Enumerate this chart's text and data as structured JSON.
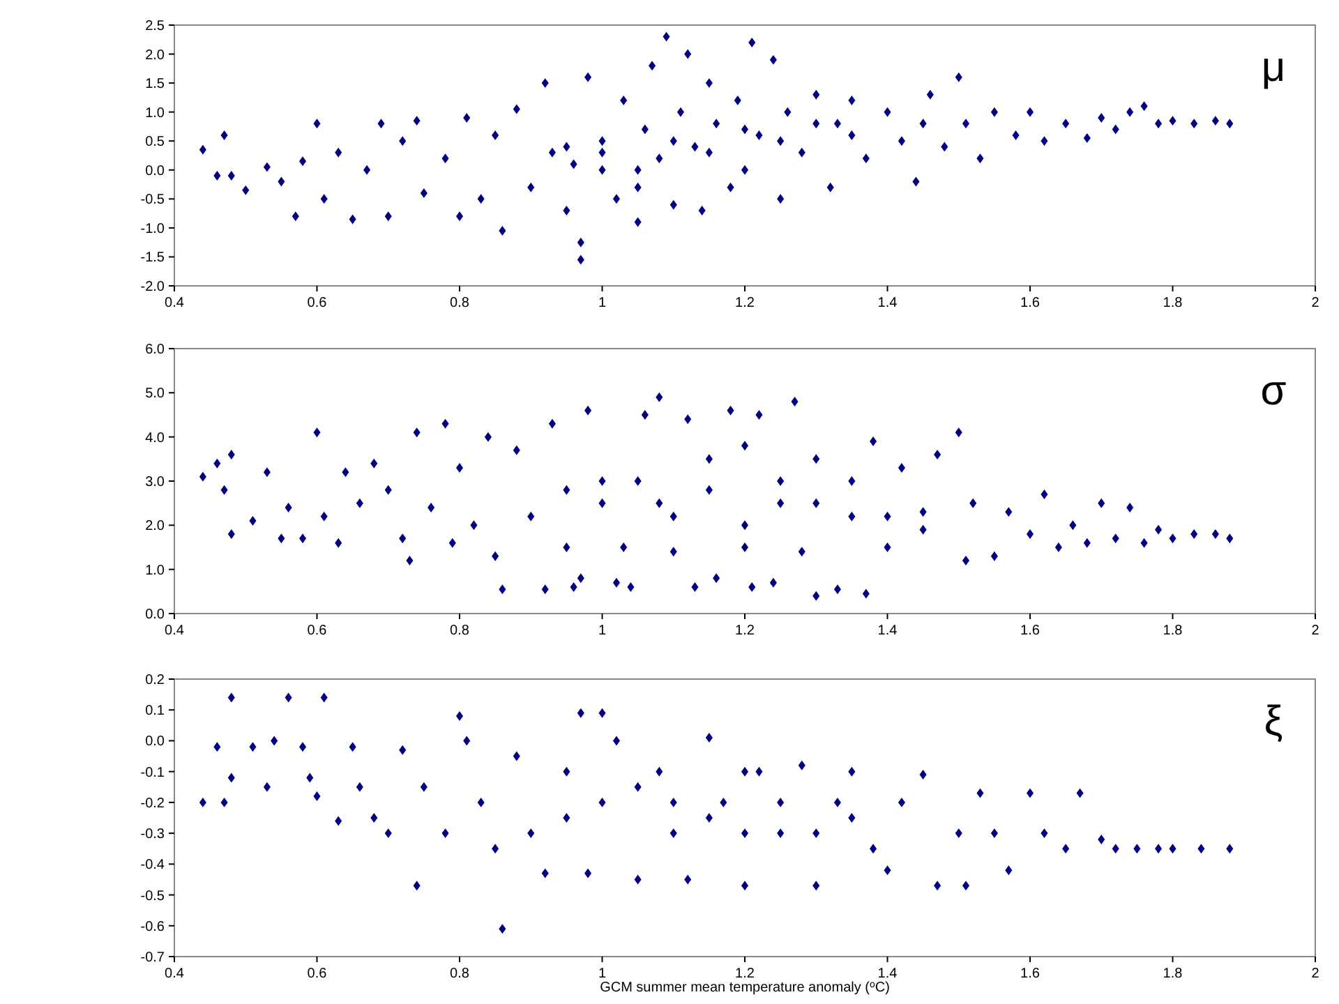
{
  "chart_data": [
    {
      "type": "scatter",
      "annotations": [
        "μ"
      ],
      "marker": "diamond",
      "xlim": [
        0.4,
        2
      ],
      "xticks": [
        0.4,
        0.6,
        0.8,
        1,
        1.2,
        1.4,
        1.6,
        1.8,
        2
      ],
      "ylim": [
        -2,
        2.5
      ],
      "yticks": [
        {
          "value": -2,
          "label": "-2.0"
        },
        -1.5,
        {
          "value": -1,
          "label": "-1.0"
        },
        -0.5,
        {
          "value": 0,
          "label": "0.0"
        },
        0.5,
        {
          "value": 1,
          "label": "1.0"
        },
        1.5,
        {
          "value": 2,
          "label": "2.0"
        },
        2.5
      ],
      "series": [
        {
          "color": "#000080",
          "x": [
            0.44,
            0.47,
            0.46,
            0.48,
            0.5,
            0.53,
            0.55,
            0.57,
            0.58,
            0.6,
            0.61,
            0.63,
            0.65,
            0.67,
            0.69,
            0.7,
            0.72,
            0.74,
            0.75,
            0.78,
            0.8,
            0.81,
            0.83,
            0.85,
            0.86,
            0.88,
            0.9,
            0.92,
            0.93,
            0.95,
            0.96,
            0.97,
            0.97,
            0.98,
            1.0,
            1.0,
            1.02,
            1.03,
            1.05,
            1.06,
            1.07,
            1.08,
            1.09,
            1.1,
            1.11,
            1.12,
            1.13,
            1.14,
            1.15,
            1.16,
            1.18,
            1.19,
            1.21,
            1.22,
            1.24,
            1.25,
            1.26,
            1.28,
            1.3,
            1.32,
            1.33,
            1.35,
            1.37,
            1.4,
            1.42,
            1.44,
            1.46,
            1.48,
            1.5,
            1.51,
            1.53,
            1.55,
            1.58,
            1.6,
            1.62,
            1.65,
            1.68,
            1.7,
            1.72,
            1.74,
            1.76,
            1.78,
            1.8,
            1.83,
            1.86,
            1.88,
            1.0,
            1.05,
            1.1,
            1.15,
            1.2,
            1.25,
            1.3,
            1.05,
            0.95,
            1.35,
            1.45,
            1.2
          ],
          "values": [
            0.35,
            0.6,
            -0.1,
            -0.1,
            -0.35,
            0.05,
            -0.2,
            -0.8,
            0.15,
            0.8,
            -0.5,
            0.3,
            -0.85,
            0.0,
            0.8,
            -0.8,
            0.5,
            0.85,
            -0.4,
            0.2,
            -0.8,
            0.9,
            -0.5,
            0.6,
            -1.05,
            1.05,
            -0.3,
            1.5,
            0.3,
            -0.7,
            0.1,
            -1.55,
            -1.25,
            1.6,
            0.0,
            0.5,
            -0.5,
            1.2,
            -0.9,
            0.7,
            1.8,
            0.2,
            2.3,
            -0.6,
            1.0,
            2.0,
            0.4,
            -0.7,
            1.5,
            0.8,
            -0.3,
            1.2,
            2.2,
            0.6,
            1.9,
            -0.5,
            1.0,
            0.3,
            1.3,
            -0.3,
            0.8,
            1.2,
            0.2,
            1.0,
            0.5,
            -0.2,
            1.3,
            0.4,
            1.6,
            0.8,
            0.2,
            1.0,
            0.6,
            1.0,
            0.5,
            0.8,
            0.55,
            0.9,
            0.7,
            1.0,
            1.1,
            0.8,
            0.85,
            0.8,
            0.85,
            0.8,
            0.3,
            0.0,
            0.5,
            0.3,
            0.7,
            0.5,
            0.8,
            -0.3,
            0.4,
            0.6,
            0.8,
            0.0
          ]
        }
      ]
    },
    {
      "type": "scatter",
      "annotations": [
        "σ"
      ],
      "marker": "diamond",
      "xlim": [
        0.4,
        2
      ],
      "xticks": [
        0.4,
        0.6,
        0.8,
        1,
        1.2,
        1.4,
        1.6,
        1.8,
        2
      ],
      "ylim": [
        0,
        6
      ],
      "yticks": [
        {
          "value": 0,
          "label": "0.0"
        },
        {
          "value": 1,
          "label": "1.0"
        },
        {
          "value": 2,
          "label": "2.0"
        },
        {
          "value": 3,
          "label": "3.0"
        },
        {
          "value": 4,
          "label": "4.0"
        },
        {
          "value": 5,
          "label": "5.0"
        },
        {
          "value": 6,
          "label": "6.0"
        }
      ],
      "series": [
        {
          "color": "#000080",
          "x": [
            0.44,
            0.46,
            0.47,
            0.48,
            0.48,
            0.51,
            0.53,
            0.55,
            0.56,
            0.58,
            0.6,
            0.61,
            0.63,
            0.64,
            0.66,
            0.68,
            0.7,
            0.72,
            0.73,
            0.74,
            0.76,
            0.78,
            0.79,
            0.8,
            0.82,
            0.84,
            0.85,
            0.86,
            0.88,
            0.9,
            0.92,
            0.93,
            0.95,
            0.96,
            0.97,
            0.98,
            1.0,
            1.02,
            1.03,
            1.04,
            1.06,
            1.08,
            1.08,
            1.1,
            1.12,
            1.13,
            1.15,
            1.16,
            1.18,
            1.2,
            1.21,
            1.22,
            1.24,
            1.25,
            1.27,
            1.28,
            1.3,
            1.3,
            1.33,
            1.35,
            1.37,
            1.38,
            1.4,
            1.42,
            1.45,
            1.47,
            1.5,
            1.51,
            1.52,
            1.55,
            1.57,
            1.6,
            1.62,
            1.64,
            1.66,
            1.68,
            1.7,
            1.72,
            1.74,
            1.76,
            1.78,
            1.8,
            1.83,
            1.86,
            1.88,
            1.0,
            1.05,
            1.1,
            1.15,
            1.2,
            1.25,
            1.3,
            1.35,
            0.95,
            1.4,
            1.45,
            1.2
          ],
          "values": [
            3.1,
            3.4,
            2.8,
            3.6,
            1.8,
            2.1,
            3.2,
            1.7,
            2.4,
            1.7,
            4.1,
            2.2,
            1.6,
            3.2,
            2.5,
            3.4,
            2.8,
            1.7,
            1.2,
            4.1,
            2.4,
            4.3,
            1.6,
            3.3,
            2.0,
            4.0,
            1.3,
            0.55,
            3.7,
            2.2,
            0.55,
            4.3,
            1.5,
            0.6,
            0.8,
            4.6,
            3.0,
            0.7,
            1.5,
            0.6,
            4.5,
            4.9,
            2.5,
            1.4,
            4.4,
            0.6,
            2.8,
            0.8,
            4.6,
            1.5,
            0.6,
            4.5,
            0.7,
            2.5,
            4.8,
            1.4,
            0.4,
            3.5,
            0.55,
            2.2,
            0.45,
            3.9,
            1.5,
            3.3,
            1.9,
            3.6,
            4.1,
            1.2,
            2.5,
            1.3,
            2.3,
            1.8,
            2.7,
            1.5,
            2.0,
            1.6,
            2.5,
            1.7,
            2.4,
            1.6,
            1.9,
            1.7,
            1.8,
            1.8,
            1.7,
            2.5,
            3.0,
            2.2,
            3.5,
            2.0,
            3.0,
            2.5,
            3.0,
            2.8,
            2.2,
            2.3,
            3.8
          ]
        }
      ]
    },
    {
      "type": "scatter",
      "annotations": [
        "ξ"
      ],
      "marker": "diamond",
      "xlabel": "GCM summer mean temperature anomaly ($^{o}$C)",
      "xlim": [
        0.4,
        2
      ],
      "xticks": [
        0.4,
        0.6,
        0.8,
        1,
        1.2,
        1.4,
        1.6,
        1.8,
        2
      ],
      "ylim": [
        -0.7,
        0.2
      ],
      "yticks": [
        -0.7,
        -0.6,
        -0.5,
        -0.4,
        -0.3,
        -0.2,
        -0.1,
        {
          "value": 0,
          "label": "0.0"
        },
        0.1,
        0.2
      ],
      "series": [
        {
          "color": "#000080",
          "x": [
            0.44,
            0.46,
            0.47,
            0.48,
            0.48,
            0.51,
            0.53,
            0.54,
            0.56,
            0.58,
            0.59,
            0.6,
            0.61,
            0.63,
            0.65,
            0.66,
            0.68,
            0.7,
            0.72,
            0.74,
            0.75,
            0.78,
            0.8,
            0.81,
            0.83,
            0.85,
            0.86,
            0.88,
            0.9,
            0.92,
            0.95,
            0.97,
            0.98,
            1.0,
            1.02,
            1.05,
            1.08,
            1.1,
            1.12,
            1.15,
            1.17,
            1.2,
            1.22,
            1.25,
            1.28,
            1.3,
            1.33,
            1.35,
            1.38,
            1.4,
            1.42,
            1.45,
            1.47,
            1.5,
            1.51,
            1.53,
            1.55,
            1.57,
            1.6,
            1.62,
            1.65,
            1.67,
            1.7,
            1.72,
            1.75,
            1.78,
            1.8,
            1.84,
            1.88,
            1.0,
            1.05,
            1.1,
            1.15,
            1.2,
            1.25,
            1.3,
            0.95,
            1.2,
            1.35
          ],
          "values": [
            -0.2,
            -0.02,
            -0.2,
            0.14,
            -0.12,
            -0.02,
            -0.15,
            0.0,
            0.14,
            -0.02,
            -0.12,
            -0.18,
            0.14,
            -0.26,
            -0.02,
            -0.15,
            -0.25,
            -0.3,
            -0.03,
            -0.47,
            -0.15,
            -0.3,
            0.08,
            0.0,
            -0.2,
            -0.35,
            -0.61,
            -0.05,
            -0.3,
            -0.43,
            -0.1,
            0.09,
            -0.43,
            0.09,
            0.0,
            -0.45,
            -0.1,
            -0.3,
            -0.45,
            0.01,
            -0.2,
            -0.47,
            -0.1,
            -0.3,
            -0.08,
            -0.47,
            -0.2,
            -0.1,
            -0.35,
            -0.42,
            -0.2,
            -0.11,
            -0.47,
            -0.3,
            -0.47,
            -0.17,
            -0.3,
            -0.42,
            -0.17,
            -0.3,
            -0.35,
            -0.17,
            -0.32,
            -0.35,
            -0.35,
            -0.35,
            -0.35,
            -0.35,
            -0.35,
            -0.2,
            -0.15,
            -0.2,
            -0.25,
            -0.3,
            -0.2,
            -0.3,
            -0.25,
            -0.1,
            -0.25
          ]
        }
      ]
    }
  ]
}
